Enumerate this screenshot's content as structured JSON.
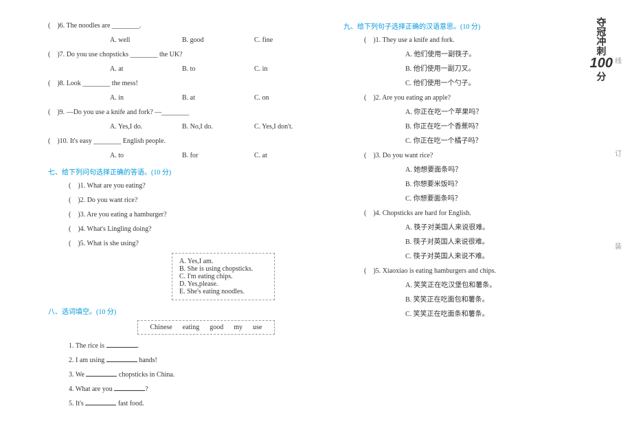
{
  "left": {
    "q6": {
      "p": "(",
      "n": ")6.",
      "t": "The noodles are ________.",
      "a": "A. well",
      "b": "B. good",
      "c": "C. fine"
    },
    "q7": {
      "p": "(",
      "n": ")7.",
      "t": "Do you use chopsticks ________ the UK?",
      "a": "A. at",
      "b": "B. to",
      "c": "C. in"
    },
    "q8": {
      "p": "(",
      "n": ")8.",
      "t": "Look ________ the mess!",
      "a": "A. in",
      "b": "B. at",
      "c": "C. on"
    },
    "q9": {
      "p": "(",
      "n": ")9.",
      "t": "—Do you use a knife and fork? —________",
      "a": "A. Yes,I do.",
      "b": "B. No,I do.",
      "c": "C. Yes,I don't."
    },
    "q10": {
      "p": "(",
      "n": ")10.",
      "t": "It's easy ________ English people.",
      "a": "A. to",
      "b": "B. for",
      "c": "C. at"
    },
    "sec7": "七、给下列问句选择正确的答语。(10 分)",
    "s1": {
      "p": "(",
      "n": ")1.",
      "t": "What are you eating?"
    },
    "s2": {
      "p": "(",
      "n": ")2.",
      "t": "Do you want rice?"
    },
    "s3": {
      "p": "(",
      "n": ")3.",
      "t": "Are you eating a hamburger?"
    },
    "s4": {
      "p": "(",
      "n": ")4.",
      "t": "What's Lingling doing?"
    },
    "s5": {
      "p": "(",
      "n": ")5.",
      "t": "What is she using?"
    },
    "box": {
      "a": "A. Yes,I am.",
      "b": "B. She is using chopsticks.",
      "c": "C. I'm eating chips.",
      "d": "D. Yes,please.",
      "e": "E. She's eating noodles."
    },
    "sec8": "八、选词填空。(10 分)",
    "words": {
      "w1": "Chinese",
      "w2": "eating",
      "w3": "good",
      "w4": "my",
      "w5": "use"
    },
    "f1": {
      "n": "1.",
      "t1": "The rice is ",
      "t2": "."
    },
    "f2": {
      "n": "2.",
      "t1": "I am using ",
      "t2": " hands!"
    },
    "f3": {
      "n": "3.",
      "t1": "We ",
      "t2": " chopsticks in China."
    },
    "f4": {
      "n": "4.",
      "t1": "What are you ",
      "t2": "?"
    },
    "f5": {
      "n": "5.",
      "t1": "It's ",
      "t2": " fast food."
    }
  },
  "right": {
    "sec9": "九、给下列句子选择正确的汉语意思。(10 分)",
    "r1": {
      "p": "(",
      "n": ")1.",
      "t": "They use a knife and fork.",
      "a": "A. 他们使用一副筷子。",
      "b": "B. 他们使用一副刀叉。",
      "c": "C. 他们使用一个勺子。"
    },
    "r2": {
      "p": "(",
      "n": ")2.",
      "t": "Are you eating an apple?",
      "a": "A. 你正在吃一个苹果吗？",
      "b": "B. 你正在吃一个香蕉吗？",
      "c": "C. 你正在吃一个橘子吗？"
    },
    "r3": {
      "p": "(",
      "n": ")3.",
      "t": "Do you want rice?",
      "a": "A. 她想要面条吗？",
      "b": "B. 你想要米饭吗？",
      "c": "C. 你想要面条吗？"
    },
    "r4": {
      "p": "(",
      "n": ")4.",
      "t": "Chopsticks are hard for English.",
      "a": "A. 筷子对美国人来说很难。",
      "b": "B. 筷子对英国人来说很难。",
      "c": "C. 筷子对英国人来说不难。"
    },
    "r5": {
      "p": "(",
      "n": ")5.",
      "t": "Xiaoxiao is eating hamburgers and chips.",
      "a": "A. 笑笑正在吃汉堡包和薯条。",
      "b": "B. 笑笑正在吃面包和薯条。",
      "c": "C. 笑笑正在吃面条和薯条。"
    }
  },
  "logo": {
    "t1": "夺冠冲刺",
    "t2": "100",
    "t3": "分"
  },
  "marks": {
    "m1": "线",
    "m2": "订",
    "m3": "装"
  }
}
